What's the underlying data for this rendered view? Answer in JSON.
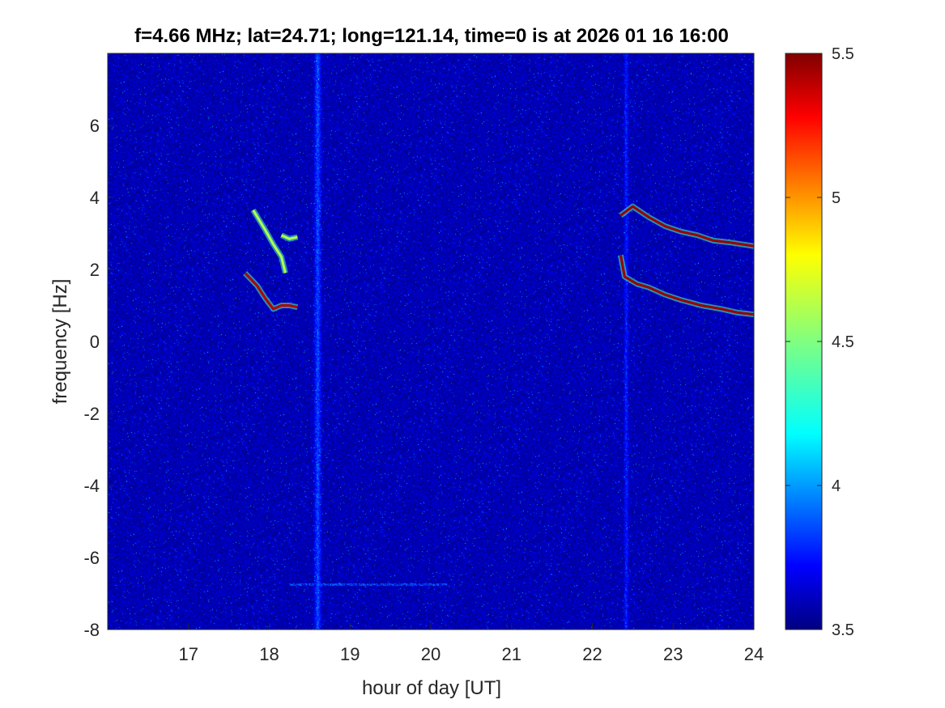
{
  "chart_data": {
    "type": "heatmap",
    "title": "f=4.66 MHz;  lat=24.71; long=121.14, time=0 is at 2026 01 16 16:00",
    "xlabel": "hour of day [UT]",
    "ylabel": "frequency [Hz]",
    "xlim": [
      16,
      24
    ],
    "ylim": [
      -8,
      8
    ],
    "xticks": [
      17,
      18,
      19,
      20,
      21,
      22,
      23,
      24
    ],
    "yticks": [
      -8,
      -6,
      -4,
      -2,
      0,
      2,
      4,
      6
    ],
    "colorbar": {
      "colormap": "jet",
      "clim": [
        3.5,
        5.5
      ],
      "ticks": [
        3.5,
        4,
        4.5,
        5,
        5.5
      ],
      "placement": "right"
    },
    "background_level": 3.6,
    "vertical_bands": [
      {
        "x": 18.6,
        "width_h": 0.12,
        "level": 3.9
      },
      {
        "x": 22.42,
        "width_h": 0.08,
        "level": 3.8
      }
    ],
    "horizontal_lines": [
      {
        "y": -6.75,
        "x_range": [
          18.25,
          20.2
        ],
        "level": 4.0
      }
    ],
    "traces": [
      {
        "points": [
          [
            17.7,
            1.9
          ],
          [
            17.85,
            1.55
          ],
          [
            17.95,
            1.2
          ],
          [
            18.05,
            0.9
          ],
          [
            18.15,
            1.0
          ],
          [
            18.25,
            1.0
          ],
          [
            18.35,
            0.95
          ]
        ],
        "level": 5.4
      },
      {
        "points": [
          [
            17.8,
            3.65
          ],
          [
            17.95,
            3.1
          ],
          [
            18.05,
            2.7
          ],
          [
            18.15,
            2.35
          ],
          [
            18.2,
            1.9
          ]
        ],
        "level": 4.6
      },
      {
        "points": [
          [
            18.15,
            2.95
          ],
          [
            18.25,
            2.85
          ],
          [
            18.35,
            2.9
          ]
        ],
        "level": 4.6
      },
      {
        "points": [
          [
            22.35,
            2.4
          ],
          [
            22.4,
            1.8
          ],
          [
            22.55,
            1.6
          ],
          [
            22.7,
            1.5
          ],
          [
            22.9,
            1.3
          ],
          [
            23.1,
            1.15
          ],
          [
            23.35,
            1.0
          ],
          [
            23.6,
            0.9
          ],
          [
            23.8,
            0.8
          ],
          [
            24.0,
            0.75
          ]
        ],
        "level": 5.45
      },
      {
        "points": [
          [
            22.35,
            3.5
          ],
          [
            22.5,
            3.75
          ],
          [
            22.7,
            3.45
          ],
          [
            22.9,
            3.2
          ],
          [
            23.1,
            3.05
          ],
          [
            23.3,
            2.95
          ],
          [
            23.5,
            2.8
          ],
          [
            23.7,
            2.75
          ],
          [
            23.85,
            2.7
          ],
          [
            24.0,
            2.65
          ]
        ],
        "level": 5.45
      }
    ]
  }
}
